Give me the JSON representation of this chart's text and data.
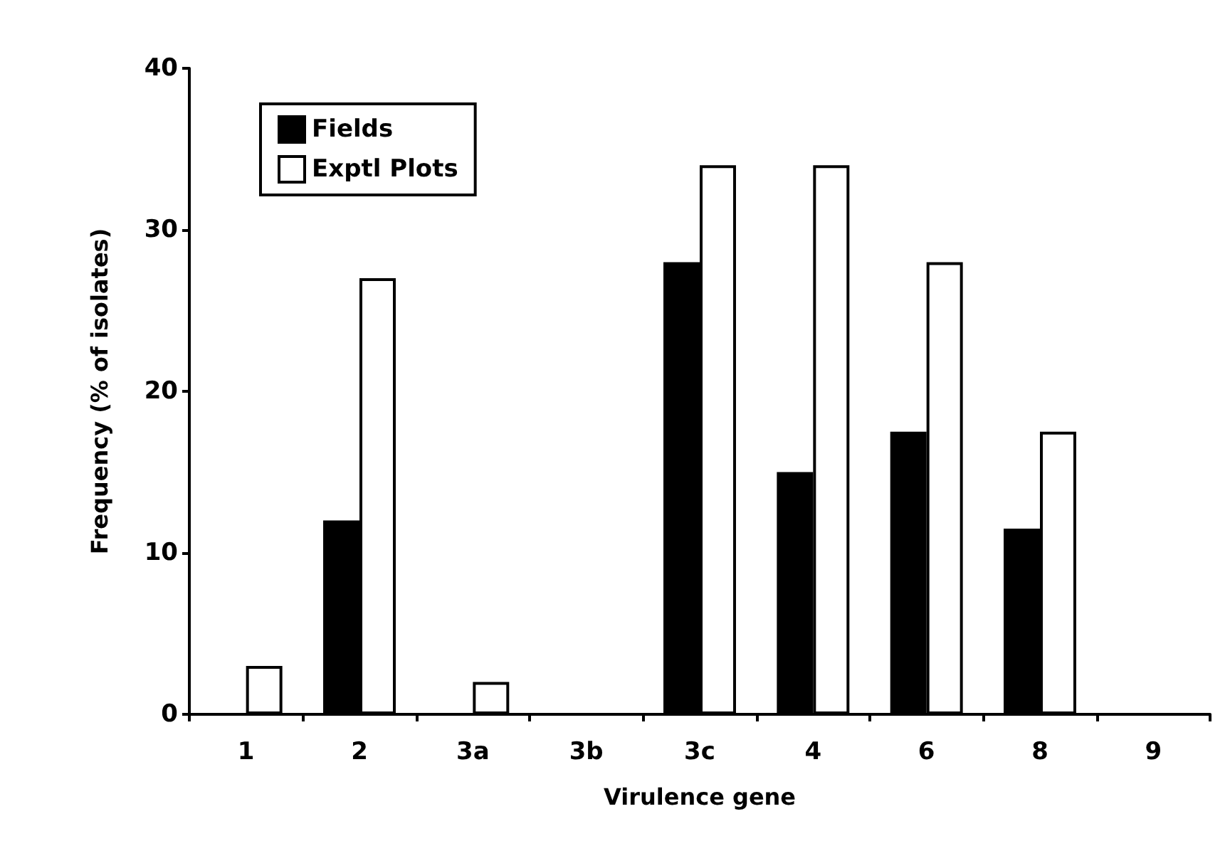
{
  "chart_data": {
    "type": "bar",
    "xlabel": "Virulence gene",
    "ylabel": "Frequency (% of isolates)",
    "categories": [
      "1",
      "2",
      "3a",
      "3b",
      "3c",
      "4",
      "6",
      "8",
      "9"
    ],
    "series": [
      {
        "name": "Fields",
        "color": "#000000",
        "values": [
          0,
          12,
          0,
          0,
          28,
          15,
          17.5,
          11.5,
          0
        ]
      },
      {
        "name": "Exptl Plots",
        "color": "#ffffff",
        "values": [
          3,
          27,
          2,
          0,
          34,
          34,
          28,
          17.5,
          0
        ]
      }
    ],
    "ylim": [
      0,
      40
    ],
    "yticks": [
      0,
      10,
      20,
      30,
      40
    ],
    "grid": false,
    "legend": "top left"
  }
}
